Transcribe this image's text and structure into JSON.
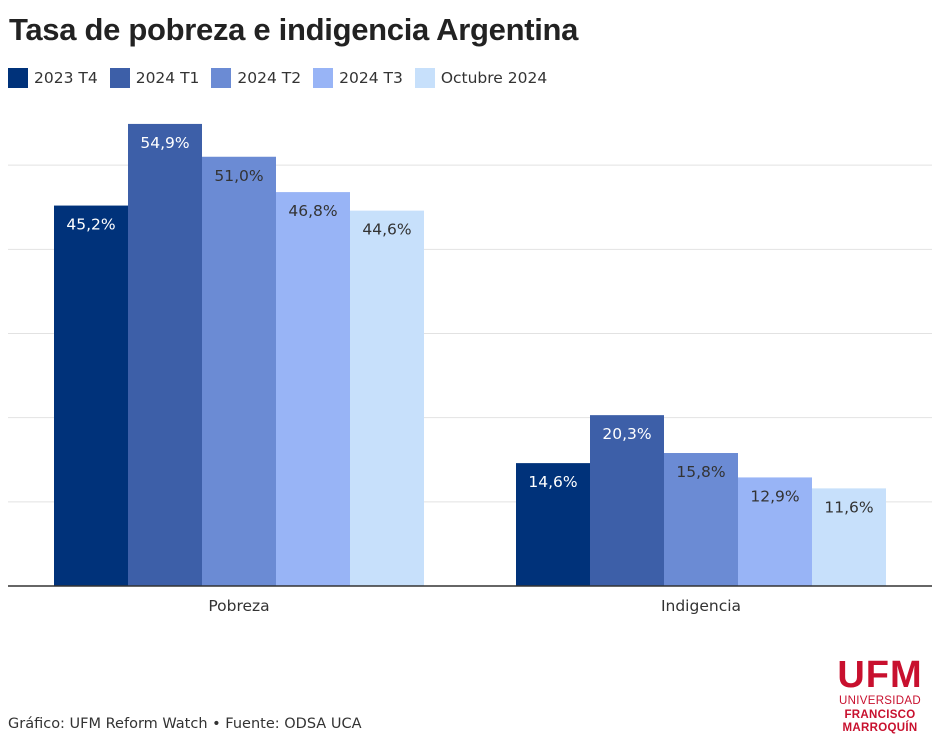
{
  "title": "Tasa de pobreza e indigencia Argentina",
  "footer": "Gráfico: UFM Reform Watch • Fuente: ODSA UCA",
  "logo": {
    "main": "UFM",
    "line1": "UNIVERSIDAD",
    "line2": "FRANCISCO",
    "line3": "MARROQUÍN"
  },
  "colors": {
    "series": [
      "#00327a",
      "#3d5fa8",
      "#6b8bd4",
      "#98b4f6",
      "#c7e0fb"
    ],
    "brand": "#c8102e"
  },
  "chart_data": {
    "type": "bar",
    "title": "Tasa de pobreza e indigencia Argentina",
    "categories": [
      "Pobreza",
      "Indigencia"
    ],
    "series": [
      {
        "name": "2023 T4",
        "values": [
          45.2,
          14.6
        ],
        "labels": [
          "45,2%",
          "14,6%"
        ]
      },
      {
        "name": "2024 T1",
        "values": [
          54.9,
          20.3
        ],
        "labels": [
          "54,9%",
          "20,3%"
        ]
      },
      {
        "name": "2024 T2",
        "values": [
          51.0,
          15.8
        ],
        "labels": [
          "51,0%",
          "15,8%"
        ]
      },
      {
        "name": "2024 T3",
        "values": [
          46.8,
          12.9
        ],
        "labels": [
          "46,8%",
          "12,9%"
        ]
      },
      {
        "name": "Octubre 2024",
        "values": [
          44.6,
          11.6
        ],
        "labels": [
          "44,6%",
          "11,6%"
        ]
      }
    ],
    "xlabel": "",
    "ylabel": "",
    "ylim": [
      0,
      60
    ],
    "grid": true,
    "legend": "top-left"
  }
}
